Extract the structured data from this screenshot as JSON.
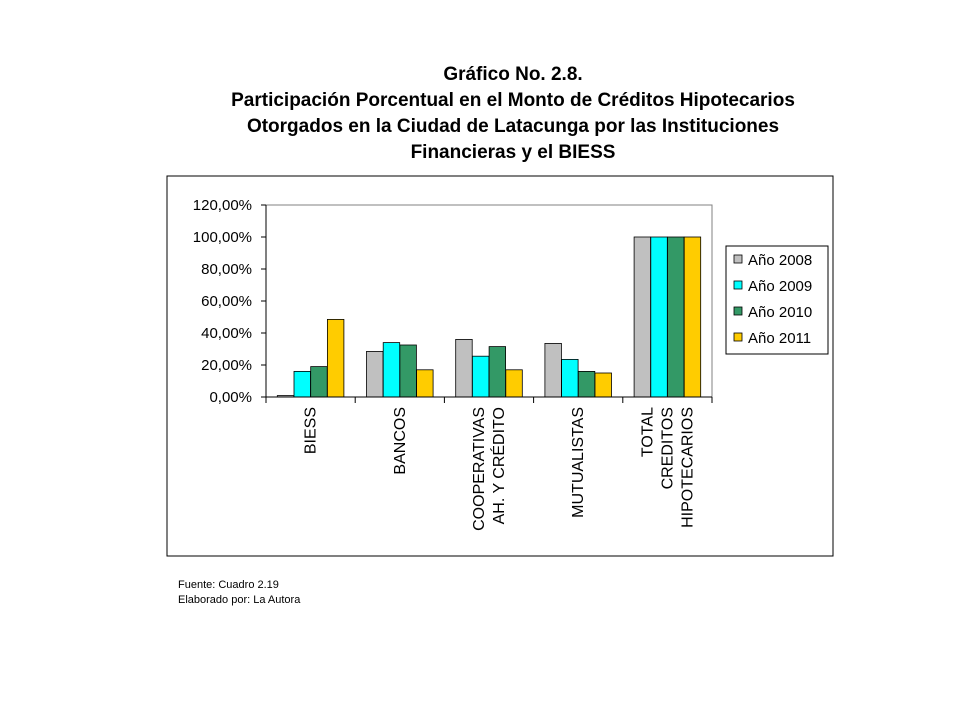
{
  "title_lines": [
    "Gráfico No. 2.8.",
    "Participación Porcentual  en el Monto de Créditos Hipotecarios",
    "Otorgados en la Ciudad de Latacunga por las Instituciones",
    "Financieras y el BIESS"
  ],
  "footnotes": {
    "source": "Fuente: Cuadro 2.19",
    "author": "Elaborado por: La Autora"
  },
  "colors": {
    "Año 2008": "#c0c0c0",
    "Año 2009": "#00ffff",
    "Año 2010": "#339966",
    "Año 2011": "#ffcc00"
  },
  "chart_data": {
    "type": "bar",
    "title": "Participación Porcentual  en el Monto de Créditos Hipotecarios Otorgados en la Ciudad de Latacunga por las Instituciones Financieras y el BIESS",
    "xlabel": "",
    "ylabel": "",
    "ylim": [
      0,
      120
    ],
    "y_ticks": [
      "0,00%",
      "20,00%",
      "40,00%",
      "60,00%",
      "80,00%",
      "100,00%",
      "120,00%"
    ],
    "grid": false,
    "legend_position": "right",
    "categories": [
      [
        "BIESS"
      ],
      [
        "BANCOS"
      ],
      [
        "COOPERATIVAS",
        "AH. Y  CRÉDITO"
      ],
      [
        "MUTUALISTAS"
      ],
      [
        "TOTAL",
        "CREDITOS",
        "HIPOTECARIOS"
      ]
    ],
    "series": [
      {
        "name": "Año 2008",
        "values": [
          0.9,
          28.5,
          36.0,
          33.5,
          100
        ]
      },
      {
        "name": "Año 2009",
        "values": [
          16.0,
          34.0,
          25.5,
          23.5,
          100
        ]
      },
      {
        "name": "Año 2010",
        "values": [
          19.0,
          32.5,
          31.5,
          16.0,
          100
        ]
      },
      {
        "name": "Año 2011",
        "values": [
          48.5,
          17.0,
          17.0,
          15.0,
          100
        ]
      }
    ]
  }
}
